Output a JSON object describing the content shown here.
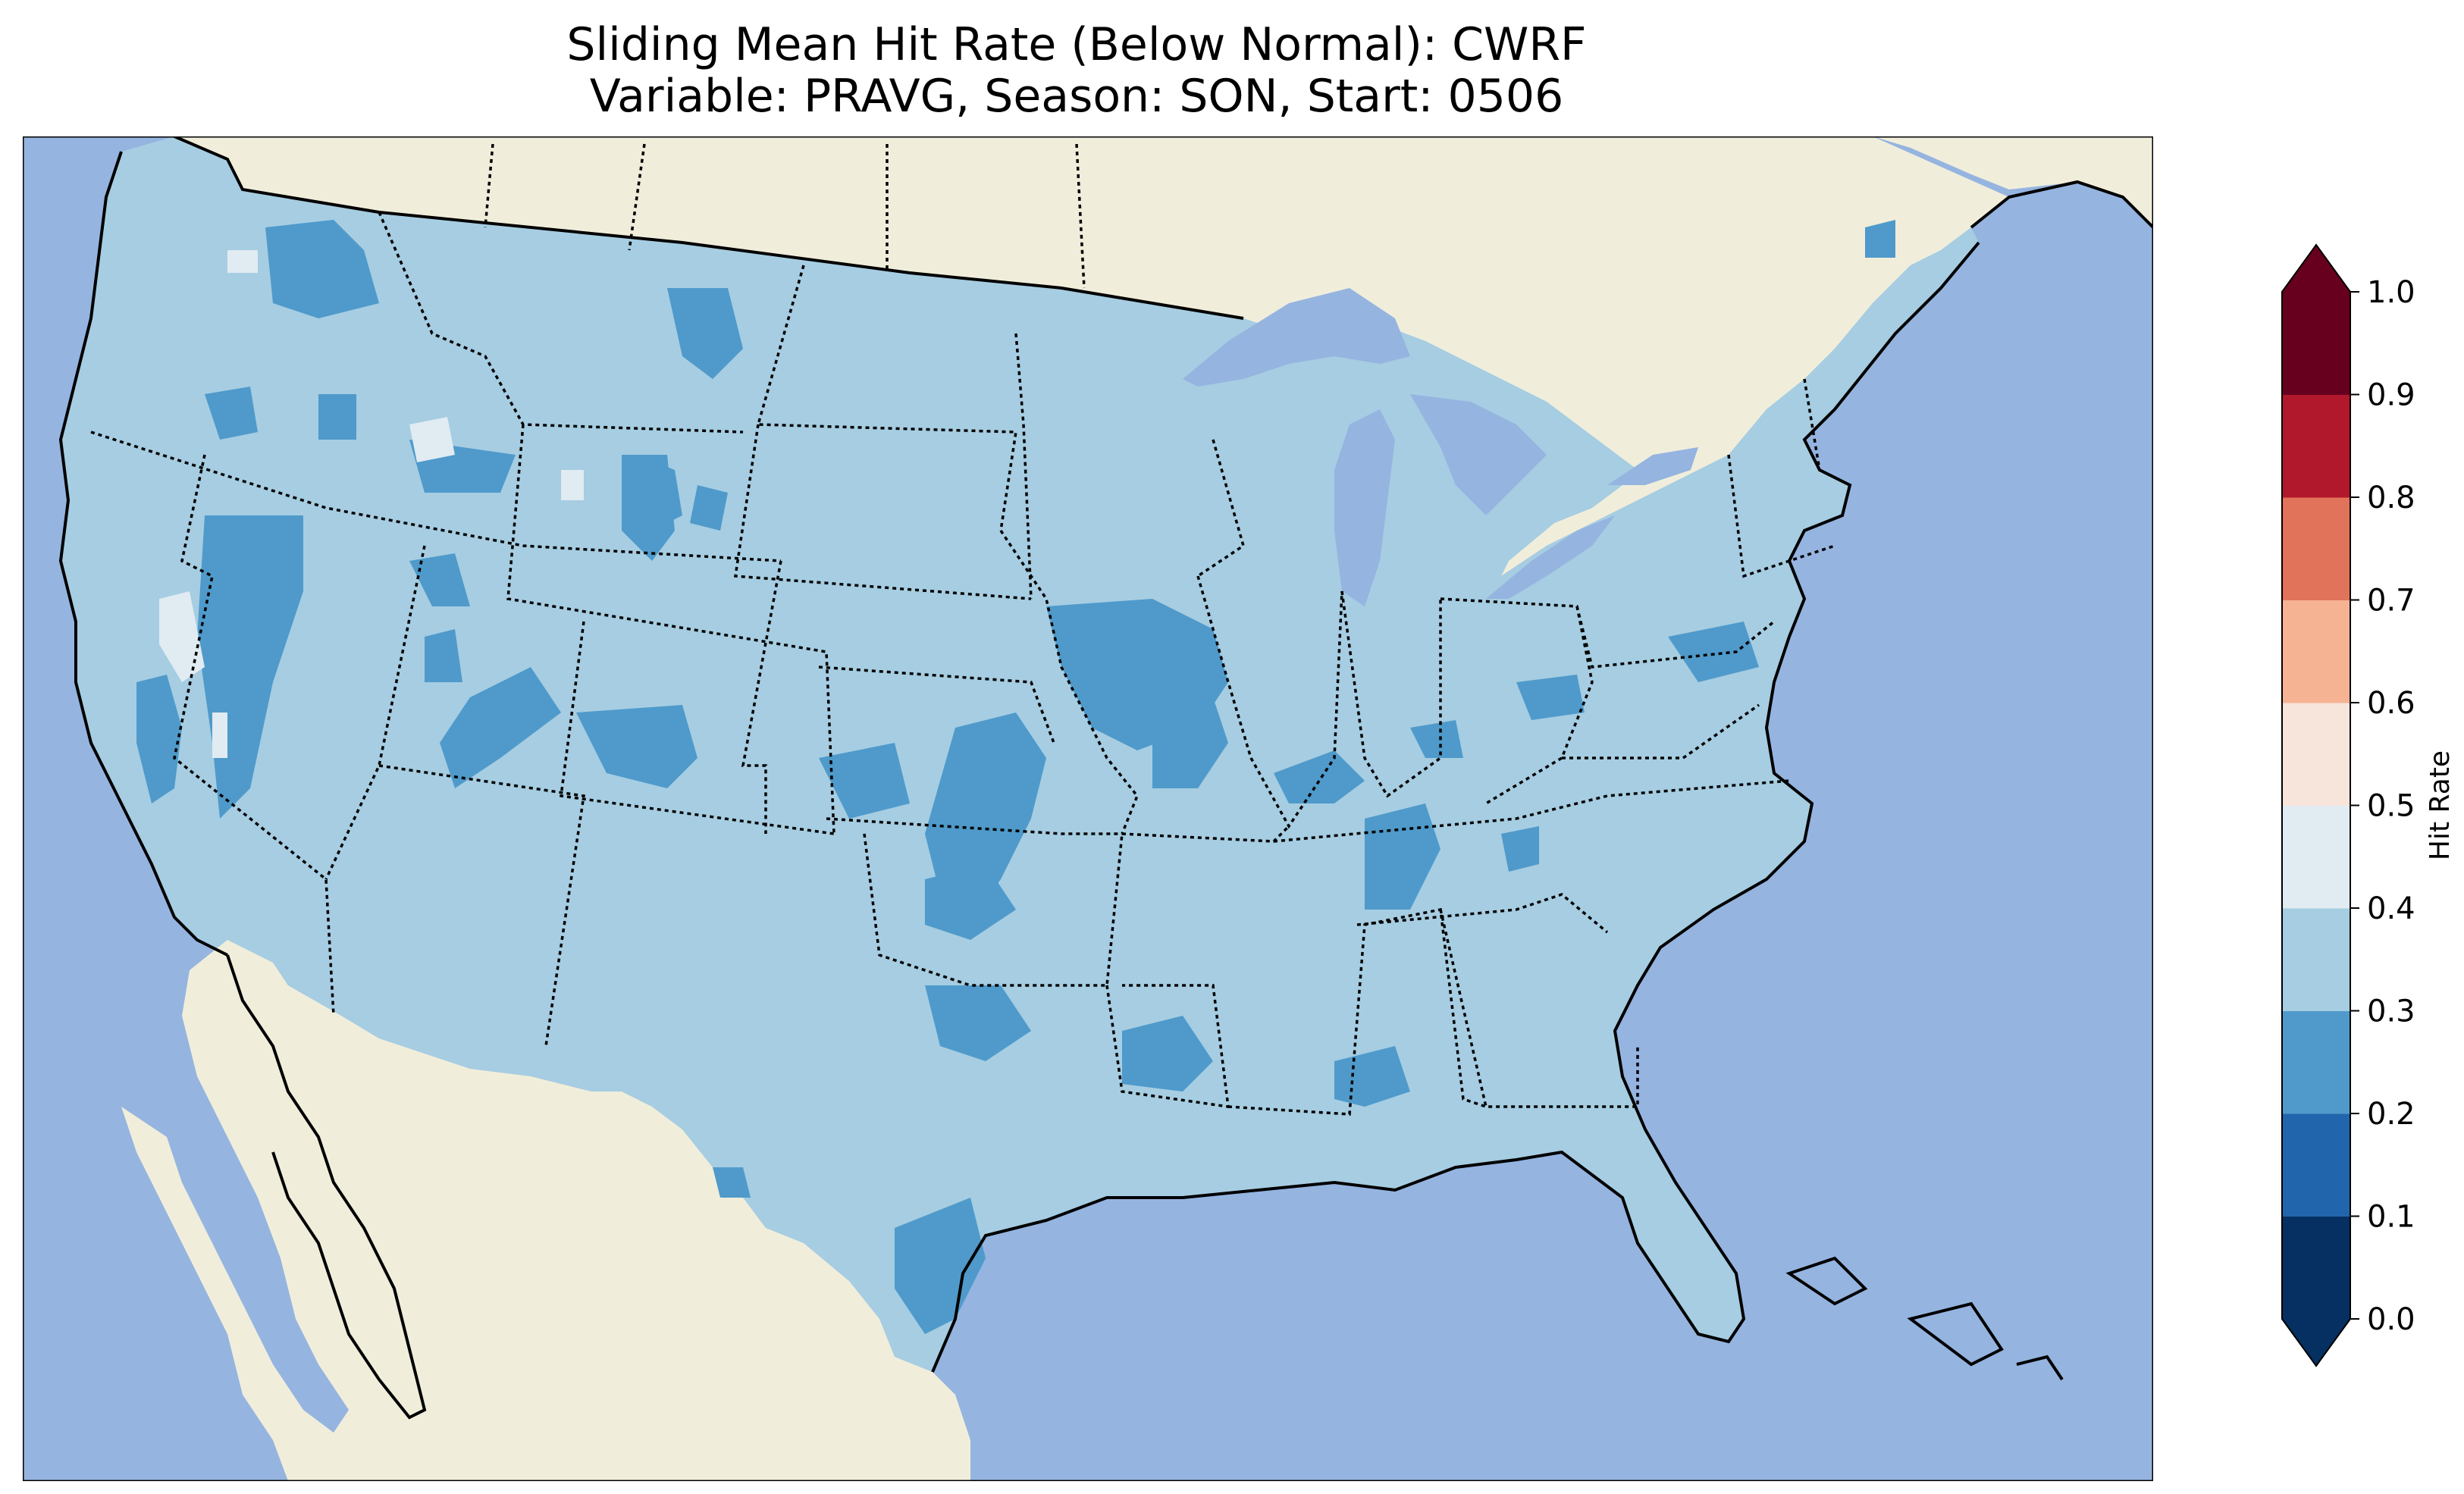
{
  "title_line1": "Sliding Mean Hit Rate (Below Normal): CWRF",
  "title_line2": "Variable: PRAVG, Season: SON, Start: 0506",
  "colors": {
    "ocean": "#95b4e0",
    "land": "#f0eedb",
    "lake": "#95b4e0",
    "dominant_field": "#a6cde2",
    "coastline": "#000000",
    "borders": "#000000"
  },
  "colorbar": {
    "label": "Hit Rate",
    "ticks": [
      "0.0",
      "0.1",
      "0.2",
      "0.3",
      "0.4",
      "0.5",
      "0.6",
      "0.7",
      "0.8",
      "0.9",
      "1.0"
    ],
    "bins": [
      {
        "range": [
          0.0,
          0.1
        ],
        "color": "#053061"
      },
      {
        "range": [
          0.1,
          0.2
        ],
        "color": "#2166ac"
      },
      {
        "range": [
          0.2,
          0.3
        ],
        "color": "#4f9acb"
      },
      {
        "range": [
          0.3,
          0.4
        ],
        "color": "#a6cde2"
      },
      {
        "range": [
          0.4,
          0.5
        ],
        "color": "#e1ebf2"
      },
      {
        "range": [
          0.5,
          0.6
        ],
        "color": "#f7e4da"
      },
      {
        "range": [
          0.6,
          0.7
        ],
        "color": "#f5b394"
      },
      {
        "range": [
          0.7,
          0.8
        ],
        "color": "#e0735a"
      },
      {
        "range": [
          0.8,
          0.9
        ],
        "color": "#b2182b"
      },
      {
        "range": [
          0.9,
          1.0
        ],
        "color": "#67001f"
      }
    ],
    "extend_under_color": "#053061",
    "extend_over_color": "#67001f"
  }
}
